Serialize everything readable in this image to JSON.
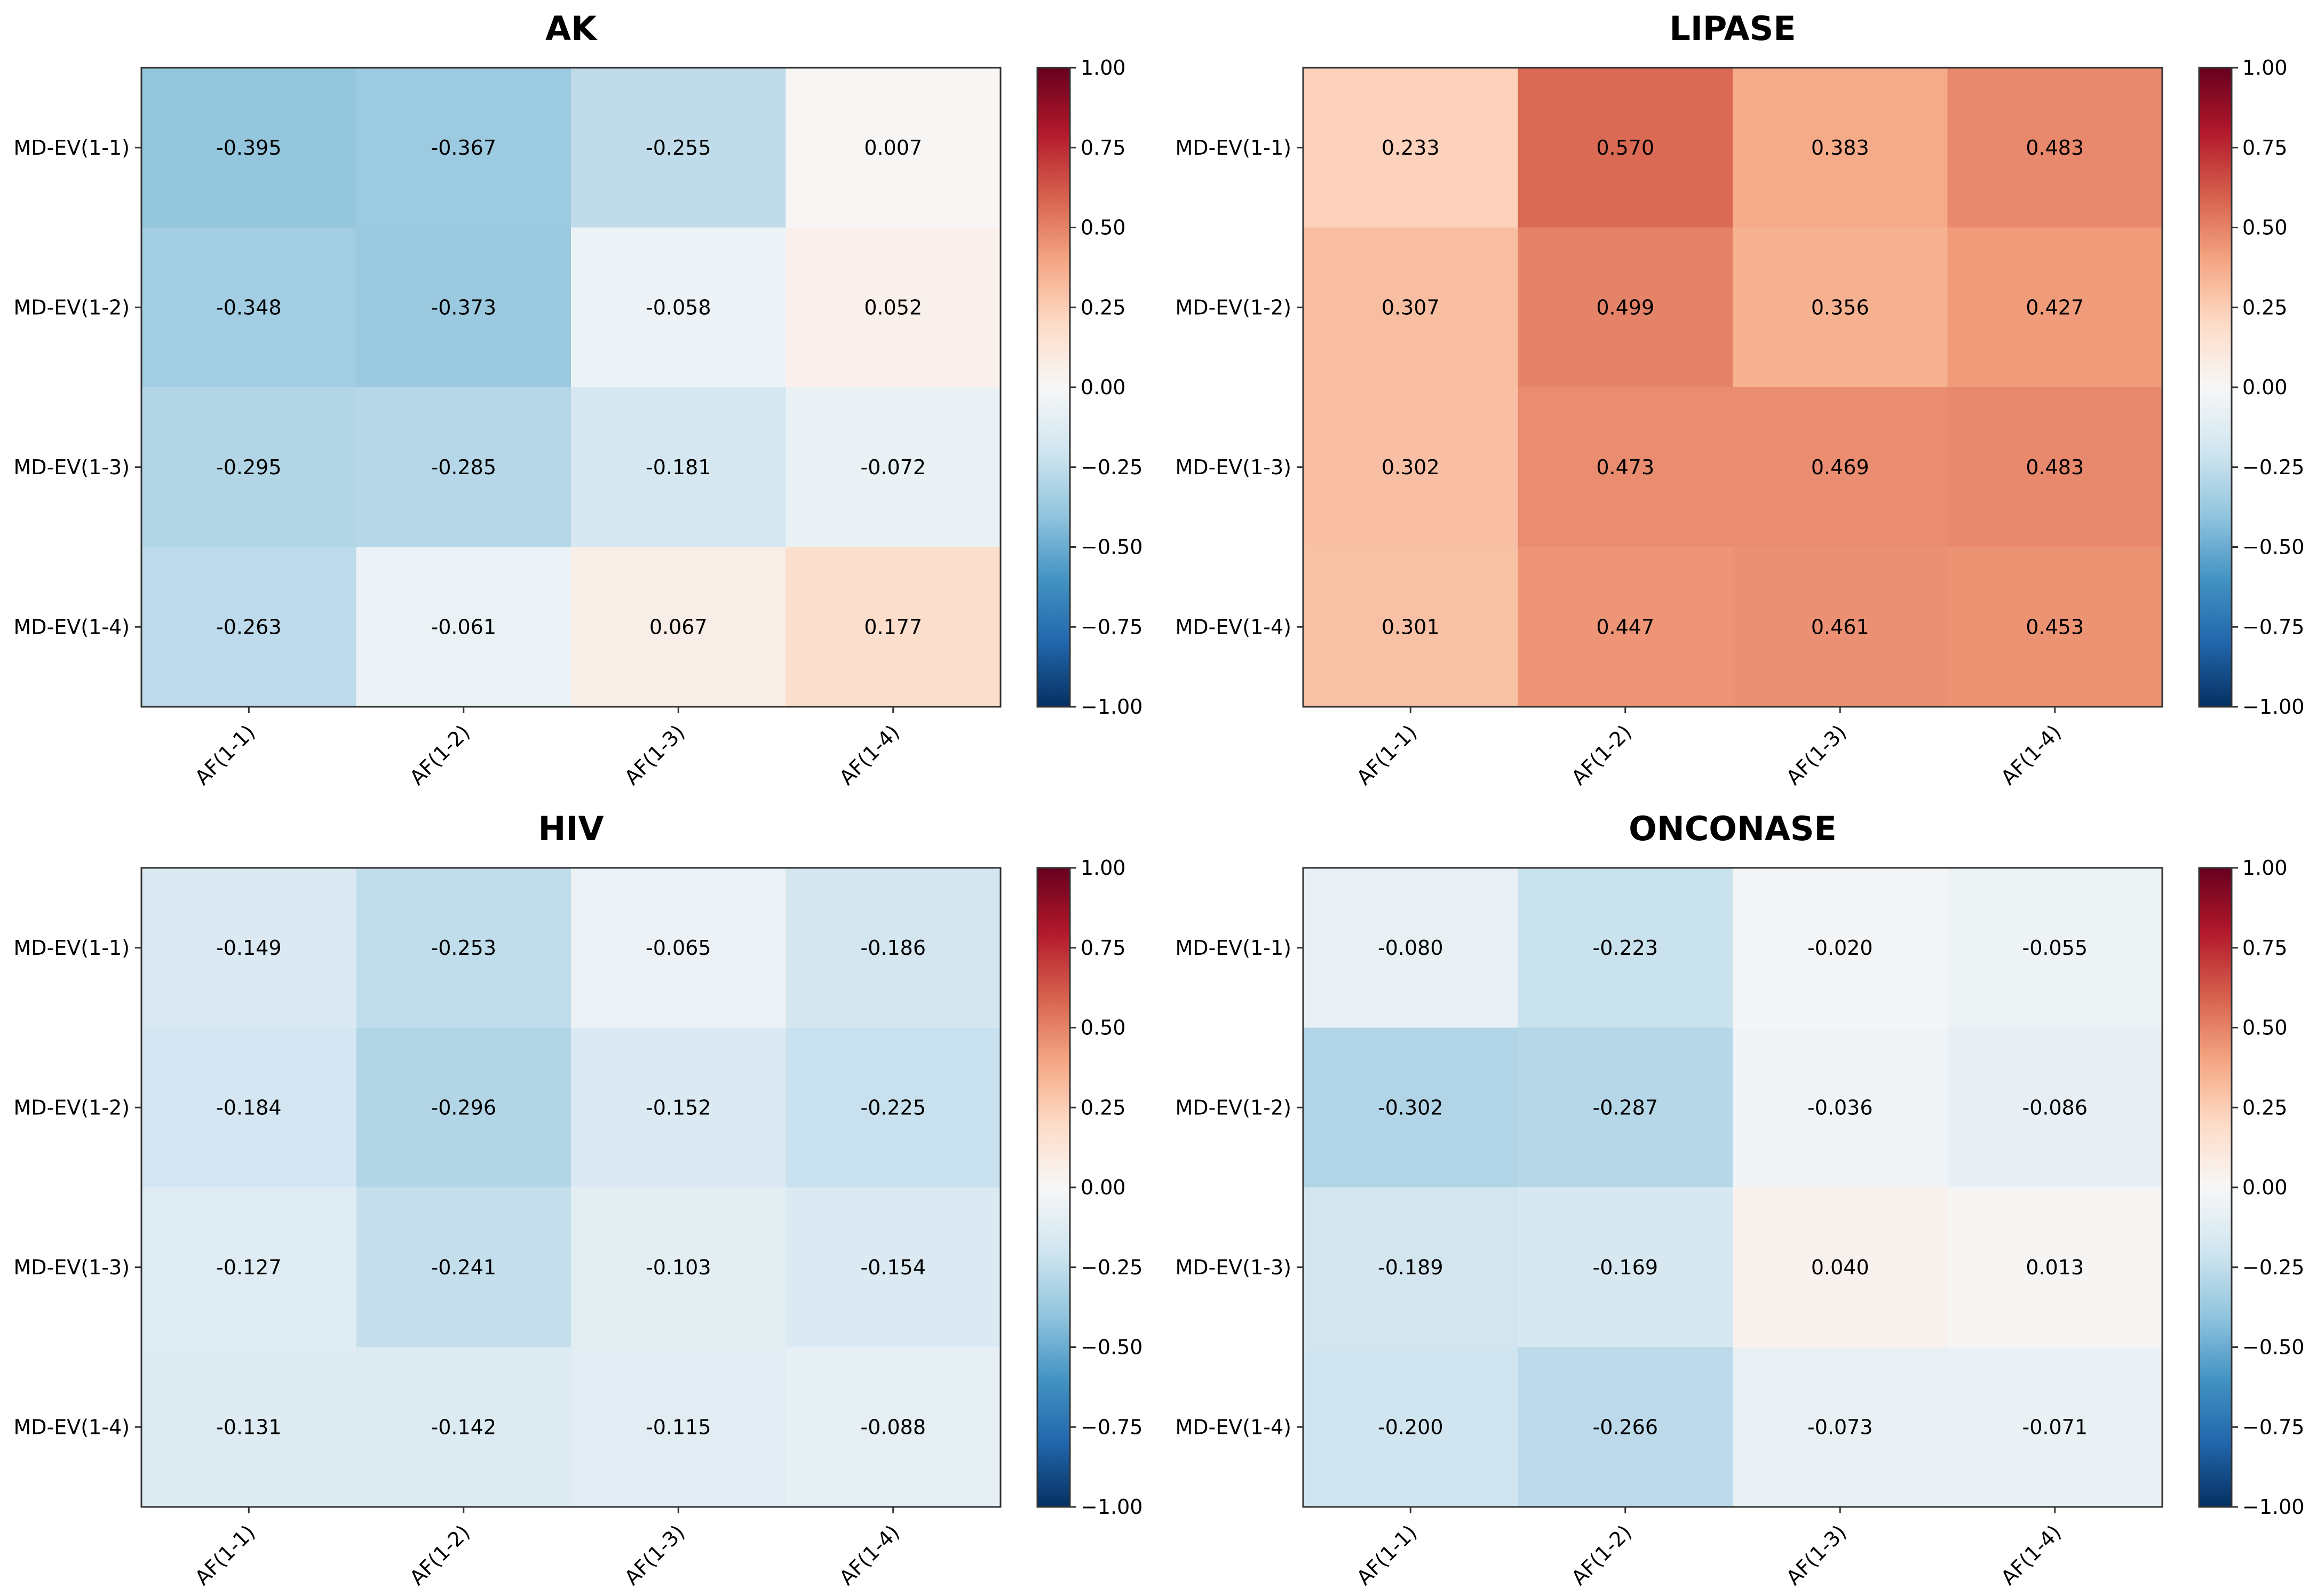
{
  "figure_title": "",
  "chart_data": [
    {
      "type": "heatmap",
      "title": "AK",
      "x_categories": [
        "AF(1-1)",
        "AF(1-2)",
        "AF(1-3)",
        "AF(1-4)"
      ],
      "y_categories": [
        "MD-EV(1-1)",
        "MD-EV(1-2)",
        "MD-EV(1-3)",
        "MD-EV(1-4)"
      ],
      "values": [
        [
          -0.395,
          -0.367,
          -0.255,
          0.007
        ],
        [
          -0.348,
          -0.373,
          -0.058,
          0.052
        ],
        [
          -0.295,
          -0.285,
          -0.181,
          -0.072
        ],
        [
          -0.263,
          -0.061,
          0.067,
          0.177
        ]
      ],
      "labels": [
        [
          "-0.395",
          "-0.367",
          "-0.255",
          "0.007"
        ],
        [
          "-0.348",
          "-0.373",
          "-0.058",
          "0.052"
        ],
        [
          "-0.295",
          "-0.285",
          "-0.181",
          "-0.072"
        ],
        [
          "-0.263",
          "-0.061",
          "0.067",
          "0.177"
        ]
      ],
      "colorbar": {
        "min": -1.0,
        "max": 1.0,
        "cmap": "RdBu_r",
        "ticks": [
          1.0,
          0.75,
          0.5,
          0.25,
          0.0,
          -0.25,
          -0.5,
          -0.75,
          -1.0
        ],
        "tick_labels": [
          "1.00",
          "0.75",
          "0.50",
          "0.25",
          "0.00",
          "−0.25",
          "−0.50",
          "−0.75",
          "−1.00"
        ]
      }
    },
    {
      "type": "heatmap",
      "title": "LIPASE",
      "x_categories": [
        "AF(1-1)",
        "AF(1-2)",
        "AF(1-3)",
        "AF(1-4)"
      ],
      "y_categories": [
        "MD-EV(1-1)",
        "MD-EV(1-2)",
        "MD-EV(1-3)",
        "MD-EV(1-4)"
      ],
      "values": [
        [
          0.233,
          0.57,
          0.383,
          0.483
        ],
        [
          0.307,
          0.499,
          0.356,
          0.427
        ],
        [
          0.302,
          0.473,
          0.469,
          0.483
        ],
        [
          0.301,
          0.447,
          0.461,
          0.453
        ]
      ],
      "labels": [
        [
          "0.233",
          "0.570",
          "0.383",
          "0.483"
        ],
        [
          "0.307",
          "0.499",
          "0.356",
          "0.427"
        ],
        [
          "0.302",
          "0.473",
          "0.469",
          "0.483"
        ],
        [
          "0.301",
          "0.447",
          "0.461",
          "0.453"
        ]
      ],
      "colorbar": {
        "min": -1.0,
        "max": 1.0,
        "cmap": "RdBu_r",
        "ticks": [
          1.0,
          0.75,
          0.5,
          0.25,
          0.0,
          -0.25,
          -0.5,
          -0.75,
          -1.0
        ],
        "tick_labels": [
          "1.00",
          "0.75",
          "0.50",
          "0.25",
          "0.00",
          "−0.25",
          "−0.50",
          "−0.75",
          "−1.00"
        ]
      }
    },
    {
      "type": "heatmap",
      "title": "HIV",
      "x_categories": [
        "AF(1-1)",
        "AF(1-2)",
        "AF(1-3)",
        "AF(1-4)"
      ],
      "y_categories": [
        "MD-EV(1-1)",
        "MD-EV(1-2)",
        "MD-EV(1-3)",
        "MD-EV(1-4)"
      ],
      "values": [
        [
          -0.149,
          -0.253,
          -0.065,
          -0.186
        ],
        [
          -0.184,
          -0.296,
          -0.152,
          -0.225
        ],
        [
          -0.127,
          -0.241,
          -0.103,
          -0.154
        ],
        [
          -0.131,
          -0.142,
          -0.115,
          -0.088
        ]
      ],
      "labels": [
        [
          "-0.149",
          "-0.253",
          "-0.065",
          "-0.186"
        ],
        [
          "-0.184",
          "-0.296",
          "-0.152",
          "-0.225"
        ],
        [
          "-0.127",
          "-0.241",
          "-0.103",
          "-0.154"
        ],
        [
          "-0.131",
          "-0.142",
          "-0.115",
          "-0.088"
        ]
      ],
      "colorbar": {
        "min": -1.0,
        "max": 1.0,
        "cmap": "RdBu_r",
        "ticks": [
          1.0,
          0.75,
          0.5,
          0.25,
          0.0,
          -0.25,
          -0.5,
          -0.75,
          -1.0
        ],
        "tick_labels": [
          "1.00",
          "0.75",
          "0.50",
          "0.25",
          "0.00",
          "−0.25",
          "−0.50",
          "−0.75",
          "−1.00"
        ]
      }
    },
    {
      "type": "heatmap",
      "title": "ONCONASE",
      "x_categories": [
        "AF(1-1)",
        "AF(1-2)",
        "AF(1-3)",
        "AF(1-4)"
      ],
      "y_categories": [
        "MD-EV(1-1)",
        "MD-EV(1-2)",
        "MD-EV(1-3)",
        "MD-EV(1-4)"
      ],
      "values": [
        [
          -0.08,
          -0.223,
          -0.02,
          -0.055
        ],
        [
          -0.302,
          -0.287,
          -0.036,
          -0.086
        ],
        [
          -0.189,
          -0.169,
          0.04,
          0.013
        ],
        [
          -0.2,
          -0.266,
          -0.073,
          -0.071
        ]
      ],
      "labels": [
        [
          "-0.080",
          "-0.223",
          "-0.020",
          "-0.055"
        ],
        [
          "-0.302",
          "-0.287",
          "-0.036",
          "-0.086"
        ],
        [
          "-0.189",
          "-0.169",
          "0.040",
          "0.013"
        ],
        [
          "-0.200",
          "-0.266",
          "-0.073",
          "-0.071"
        ]
      ],
      "colorbar": {
        "min": -1.0,
        "max": 1.0,
        "cmap": "RdBu_r",
        "ticks": [
          1.0,
          0.75,
          0.5,
          0.25,
          0.0,
          -0.25,
          -0.5,
          -0.75,
          -1.0
        ],
        "tick_labels": [
          "1.00",
          "0.75",
          "0.50",
          "0.25",
          "0.00",
          "−0.25",
          "−0.50",
          "−0.75",
          "−1.00"
        ]
      }
    }
  ]
}
